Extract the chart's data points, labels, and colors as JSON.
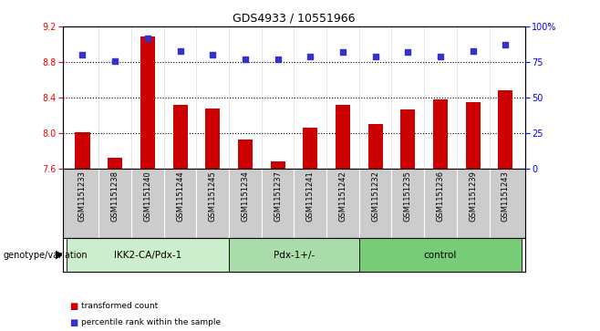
{
  "title": "GDS4933 / 10551966",
  "samples": [
    "GSM1151233",
    "GSM1151238",
    "GSM1151240",
    "GSM1151244",
    "GSM1151245",
    "GSM1151234",
    "GSM1151237",
    "GSM1151241",
    "GSM1151242",
    "GSM1151232",
    "GSM1151235",
    "GSM1151236",
    "GSM1151239",
    "GSM1151243"
  ],
  "bar_values": [
    8.01,
    7.72,
    9.09,
    8.32,
    8.28,
    7.93,
    7.68,
    8.06,
    8.32,
    8.1,
    8.27,
    8.38,
    8.35,
    8.48
  ],
  "dot_values": [
    80,
    76,
    92,
    83,
    80,
    77,
    77,
    79,
    82,
    79,
    82,
    79,
    83,
    87
  ],
  "groups": [
    {
      "label": "IKK2-CA/Pdx-1",
      "start": 0,
      "end": 5
    },
    {
      "label": "Pdx-1+/-",
      "start": 5,
      "end": 9
    },
    {
      "label": "control",
      "start": 9,
      "end": 14
    }
  ],
  "bar_color": "#cc0000",
  "dot_color": "#3333cc",
  "ylim_left": [
    7.6,
    9.2
  ],
  "ylim_right": [
    0,
    100
  ],
  "yticks_left": [
    7.6,
    8.0,
    8.4,
    8.8,
    9.2
  ],
  "yticks_right": [
    0,
    25,
    50,
    75,
    100
  ],
  "grid_lines": [
    8.0,
    8.4,
    8.8
  ],
  "group_shades": [
    "#cceecc",
    "#aaddaa",
    "#77cc77"
  ],
  "bg_color": "#cccccc",
  "legend_bar_label": "transformed count",
  "legend_dot_label": "percentile rank within the sample",
  "genotype_label": "genotype/variation"
}
